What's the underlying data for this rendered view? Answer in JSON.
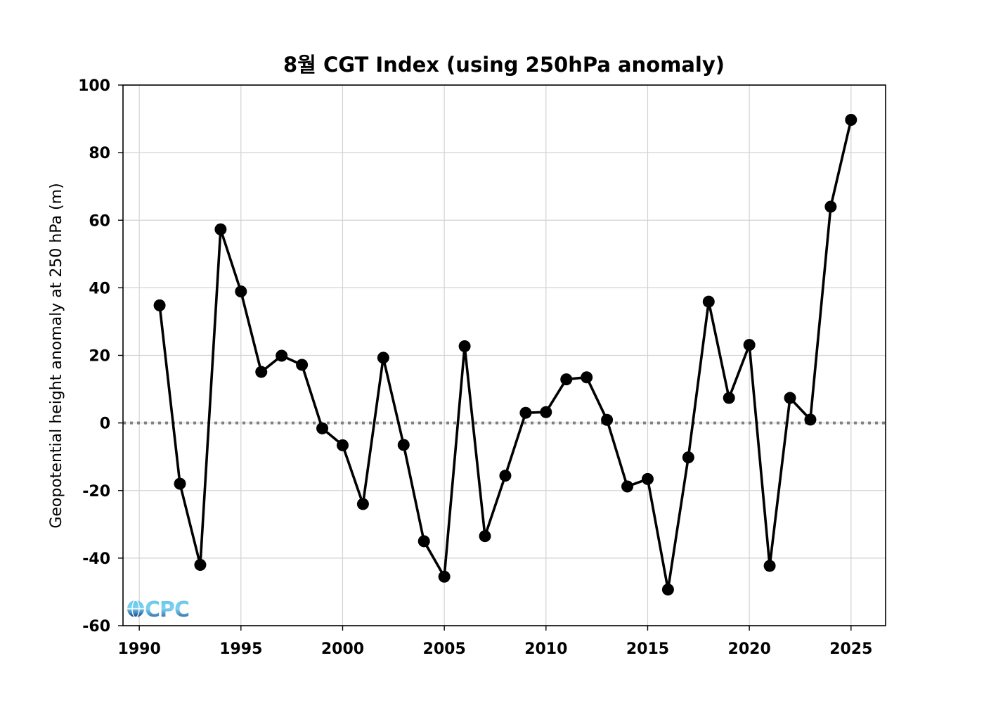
{
  "chart_data": {
    "type": "line",
    "title": "8월 CGT Index (using 250hPa anomaly)",
    "xlabel": "",
    "ylabel": "Geopotential height anomaly at 250 hPa (m)",
    "xlim": [
      1989.2,
      2026.7
    ],
    "ylim": [
      -60,
      100
    ],
    "xticks": [
      1990,
      1995,
      2000,
      2005,
      2010,
      2015,
      2020,
      2025
    ],
    "yticks": [
      -60,
      -40,
      -20,
      0,
      20,
      40,
      60,
      80,
      100
    ],
    "grid": true,
    "reference_line": {
      "y": 0,
      "style": "dotted",
      "color": "#808080"
    },
    "series": [
      {
        "color": "#000000",
        "marker": "circle",
        "x": [
          1991,
          1992,
          1993,
          1994,
          1995,
          1996,
          1997,
          1998,
          1999,
          2000,
          2001,
          2002,
          2003,
          2004,
          2005,
          2006,
          2007,
          2008,
          2009,
          2010,
          2011,
          2012,
          2013,
          2014,
          2015,
          2016,
          2017,
          2018,
          2019,
          2020,
          2021,
          2022,
          2023,
          2024,
          2025
        ],
        "y": [
          34.8,
          -18.0,
          -42.0,
          57.3,
          38.9,
          15.1,
          19.9,
          17.2,
          -1.6,
          -6.6,
          -24.0,
          19.3,
          -6.5,
          -35.0,
          -45.5,
          22.7,
          -33.5,
          -15.6,
          3.0,
          3.2,
          12.9,
          13.5,
          0.9,
          -18.8,
          -16.6,
          -49.3,
          -10.2,
          35.9,
          7.4,
          23.1,
          -42.3,
          7.4,
          1.0,
          64.0,
          89.7
        ]
      }
    ]
  },
  "logo": {
    "text": "CPC",
    "colors": {
      "top": "#5fc4e8",
      "bottom": "#0b3f8a"
    }
  }
}
